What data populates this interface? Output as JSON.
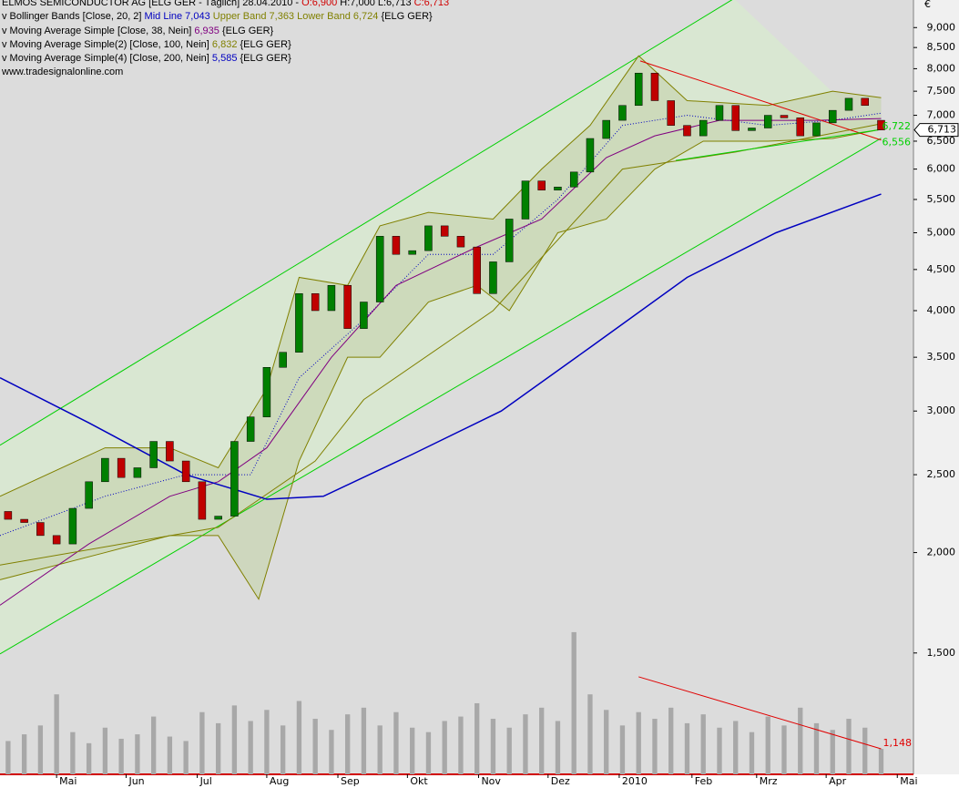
{
  "chart_data": {
    "type": "candlestick",
    "header": [
      {
        "text": "ELMOS SEMICONDUCTOR AG [ELG GER - Täglich] 28.04.2010 - ",
        "color": "#000000"
      },
      {
        "text": "O:6,900",
        "color": "#d00000"
      },
      {
        "text": " H:7,000 L:6,713 ",
        "color": "#000000"
      },
      {
        "text": "C:6,713",
        "color": "#d00000"
      }
    ],
    "legend": [
      [
        {
          "text": "v Bollinger Bands [Close, 20, 2]",
          "color": "#000000"
        },
        {
          "text": " Mid Line 7,043",
          "color": "#0000c0"
        },
        {
          "text": " Upper Band 7,363",
          "color": "#808000"
        },
        {
          "text": " Lower Band 6,724",
          "color": "#808000"
        },
        {
          "text": " {ELG GER}",
          "color": "#000000"
        }
      ],
      [
        {
          "text": "v Moving Average Simple [Close, 38, Nein]",
          "color": "#000000"
        },
        {
          "text": " 6,935",
          "color": "#800080"
        },
        {
          "text": " {ELG GER}",
          "color": "#000000"
        }
      ],
      [
        {
          "text": "v Moving Average Simple(2) [Close, 100, Nein]",
          "color": "#000000"
        },
        {
          "text": " 6,832",
          "color": "#808000"
        },
        {
          "text": " {ELG GER}",
          "color": "#000000"
        }
      ],
      [
        {
          "text": "v Moving Average Simple(4) [Close, 200, Nein]",
          "color": "#000000"
        },
        {
          "text": " 5,585",
          "color": "#0000c0"
        },
        {
          "text": " {ELG GER}",
          "color": "#000000"
        }
      ],
      [
        {
          "text": "www.tradesignalonline.com",
          "color": "#000000"
        }
      ]
    ],
    "currency": "€",
    "log_scale": true,
    "up_color": "#008000",
    "down_color": "#c00000",
    "x": [
      -3,
      -2,
      -1,
      0,
      1,
      2,
      3,
      4,
      5,
      6,
      7,
      8,
      9,
      10,
      11,
      12,
      13,
      14,
      15,
      16,
      17,
      18,
      19,
      20,
      21,
      22,
      23,
      24,
      25,
      26,
      27,
      28,
      29,
      30,
      31,
      32,
      33,
      34,
      35,
      36,
      37,
      38,
      39,
      40,
      41,
      42,
      43,
      44,
      45,
      46,
      47,
      48,
      49,
      50,
      51
    ],
    "open": [
      2.25,
      2.2,
      2.18,
      2.1,
      2.05,
      2.27,
      2.45,
      2.62,
      2.48,
      2.55,
      2.75,
      2.6,
      2.45,
      2.2,
      2.22,
      2.75,
      2.95,
      3.4,
      3.55,
      4.2,
      4.0,
      4.3,
      3.8,
      4.1,
      4.95,
      4.7,
      4.75,
      5.1,
      4.95,
      4.8,
      4.2,
      4.6,
      5.2,
      5.8,
      5.65,
      5.7,
      5.95,
      6.55,
      6.9,
      7.2,
      7.9,
      7.3,
      6.8,
      6.6,
      6.9,
      7.2,
      6.7,
      6.75,
      7.0,
      6.95,
      6.6,
      6.85,
      7.1,
      7.35,
      6.9
    ],
    "close": [
      2.2,
      2.18,
      2.1,
      2.05,
      2.27,
      2.45,
      2.62,
      2.48,
      2.55,
      2.75,
      2.6,
      2.45,
      2.2,
      2.22,
      2.75,
      2.95,
      3.4,
      3.55,
      4.2,
      4.0,
      4.3,
      3.8,
      4.1,
      4.95,
      4.7,
      4.75,
      5.1,
      4.95,
      4.8,
      4.2,
      4.6,
      5.2,
      5.8,
      5.65,
      5.7,
      5.95,
      6.55,
      6.9,
      7.2,
      7.9,
      7.3,
      6.8,
      6.6,
      6.9,
      7.2,
      6.7,
      6.75,
      7.0,
      6.95,
      6.6,
      6.85,
      7.1,
      7.35,
      7.2,
      6.713
    ],
    "last_label": "6,713",
    "bands": {
      "color": "#808000",
      "fill": "#c8d4b0",
      "upper": {
        "x": [
          -3.5,
          3,
          7,
          10,
          13,
          15,
          18,
          20,
          23,
          27,
          30,
          33,
          36,
          39,
          44,
          48,
          51
        ],
        "values": [
          2.35,
          2.7,
          2.7,
          2.55,
          3.2,
          4.4,
          4.3,
          5.1,
          5.3,
          5.2,
          6.0,
          6.8,
          8.3,
          7.3,
          7.2,
          7.5,
          7.363
        ]
      },
      "lower": {
        "x": [
          -3.5,
          3,
          7,
          10,
          12.5,
          15,
          18,
          20,
          23,
          26,
          28,
          31,
          34,
          37,
          40,
          44,
          48,
          51
        ],
        "values": [
          1.85,
          2.0,
          2.1,
          2.1,
          1.75,
          2.6,
          3.5,
          3.5,
          4.1,
          4.3,
          4.0,
          5.0,
          5.2,
          6.0,
          6.5,
          6.5,
          6.55,
          6.724
        ]
      },
      "mid": {
        "color": "#0000c0",
        "x": [
          -3.5,
          3,
          8,
          12,
          15,
          19,
          23,
          27,
          31,
          35,
          39,
          44,
          48,
          51
        ],
        "values": [
          2.1,
          2.35,
          2.5,
          2.5,
          3.3,
          3.9,
          4.7,
          4.7,
          5.5,
          6.8,
          7.0,
          6.8,
          6.9,
          7.043
        ]
      }
    },
    "lines": [
      {
        "color": "#800080",
        "x": [
          -3.5,
          2,
          7,
          10,
          13,
          17,
          21,
          26,
          30,
          34,
          37,
          41,
          47,
          51
        ],
        "values": [
          1.72,
          2.05,
          2.35,
          2.45,
          2.7,
          3.5,
          4.3,
          4.8,
          5.2,
          6.2,
          6.6,
          6.9,
          6.9,
          6.935
        ]
      },
      {
        "color": "#808000",
        "x": [
          -3.5,
          10,
          16,
          19,
          27,
          35,
          42,
          51
        ],
        "values": [
          1.93,
          2.15,
          2.6,
          3.1,
          4.0,
          6.0,
          6.3,
          6.832
        ]
      },
      {
        "color": "#0000c0",
        "x": [
          -3.5,
          2,
          8,
          13,
          16.5,
          22,
          27.5,
          33,
          39,
          44.5,
          51
        ],
        "values": [
          3.3,
          2.9,
          2.5,
          2.33,
          2.35,
          2.65,
          3.0,
          3.6,
          4.4,
          5.0,
          5.585
        ]
      }
    ],
    "channel": {
      "color": "#00d000",
      "fill": "#d8ead0",
      "upper": {
        "x": [
          -3.5,
          41.9
        ],
        "values": [
          2.72,
          9.78
        ]
      },
      "lower": {
        "x": [
          -3.5,
          51
        ],
        "values": [
          1.496,
          6.556
        ],
        "end_label": "6,556"
      }
    },
    "trendlines": [
      {
        "color": "#e00000",
        "x": [
          36.1,
          51
        ],
        "values": [
          8.18,
          6.52
        ]
      },
      {
        "color": "#00d000",
        "x": [
          38.3,
          51
        ],
        "values": [
          6.15,
          6.722
        ],
        "end_label": "6,722"
      }
    ],
    "volume": {
      "color": "#a8a8a8",
      "ylim": [
        0,
        10250
      ],
      "values": [
        1500,
        1800,
        2200,
        3600,
        1900,
        1400,
        2100,
        1600,
        1800,
        2600,
        1700,
        1500,
        2800,
        2300,
        3100,
        2400,
        2900,
        2200,
        3300,
        2500,
        2000,
        2700,
        3000,
        2200,
        2800,
        2100,
        1900,
        2400,
        2600,
        3200,
        2500,
        2100,
        2700,
        3000,
        2400,
        6400,
        3600,
        2900,
        2200,
        2800,
        2500,
        3000,
        2300,
        2700,
        2100,
        2400,
        1900,
        2600,
        2200,
        3000,
        2300,
        2000,
        2500,
        2100,
        1148
      ],
      "value_labels": [
        null,
        null,
        null,
        null,
        null,
        null,
        null,
        null,
        null,
        null,
        null,
        null,
        null,
        null,
        null,
        null,
        null,
        null,
        null,
        null,
        null,
        null,
        null,
        null,
        null,
        null,
        null,
        null,
        null,
        null,
        null,
        null,
        null,
        null,
        null,
        null,
        null,
        null,
        null,
        null,
        null,
        null,
        null,
        null,
        null,
        null,
        null,
        null,
        null,
        null,
        null,
        null,
        null,
        null,
        "1,148"
      ],
      "trend": {
        "color": "#e00000",
        "x": [
          36,
          51
        ],
        "values": [
          4390,
          1148
        ]
      }
    },
    "xlim": [
      -3.5,
      53
    ],
    "xticks": [
      {
        "value": 0,
        "label": "Mai"
      },
      {
        "value": 4.3,
        "label": "Jun"
      },
      {
        "value": 8.7,
        "label": "Jul"
      },
      {
        "value": 13,
        "label": "Aug"
      },
      {
        "value": 17.4,
        "label": "Sep"
      },
      {
        "value": 21.7,
        "label": "Okt"
      },
      {
        "value": 26.1,
        "label": "Nov"
      },
      {
        "value": 30.4,
        "label": "Dez"
      },
      {
        "value": 34.8,
        "label": "2010"
      },
      {
        "value": 39.3,
        "label": "Feb"
      },
      {
        "value": 43.3,
        "label": "Mrz"
      },
      {
        "value": 47.6,
        "label": "Apr"
      },
      {
        "value": 52,
        "label": "Mai"
      }
    ],
    "ylim": [
      1.0595,
      9.74
    ],
    "yticks": [
      {
        "value": 1.5,
        "label": "1,500"
      },
      {
        "value": 2,
        "label": "2,000"
      },
      {
        "value": 2.5,
        "label": "2,500"
      },
      {
        "value": 3,
        "label": "3,000"
      },
      {
        "value": 3.5,
        "label": "3,500"
      },
      {
        "value": 4,
        "label": "4,000"
      },
      {
        "value": 4.5,
        "label": "4,500"
      },
      {
        "value": 5,
        "label": "5,000"
      },
      {
        "value": 5.5,
        "label": "5,500"
      },
      {
        "value": 6,
        "label": "6,000"
      },
      {
        "value": 6.5,
        "label": "6,500"
      },
      {
        "value": 7,
        "label": "7,000"
      },
      {
        "value": 7.5,
        "label": "7,500"
      },
      {
        "value": 8,
        "label": "8,000"
      },
      {
        "value": 8.5,
        "label": "8,500"
      },
      {
        "value": 9,
        "label": "9,000"
      }
    ]
  }
}
